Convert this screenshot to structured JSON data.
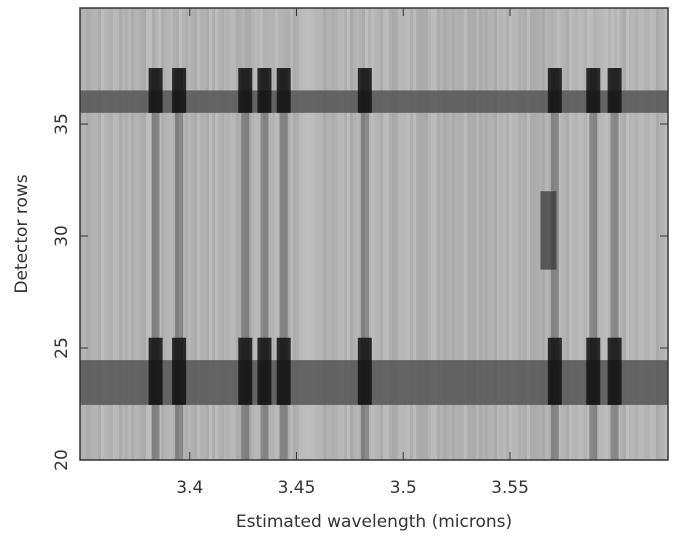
{
  "chart_data": {
    "type": "spectrum-image",
    "xlabel": "Estimated wavelength (microns)",
    "ylabel": "Detector rows",
    "xlim": [
      3.3486,
      3.624
    ],
    "ylim": [
      20,
      40.18
    ],
    "xticks": [
      3.4,
      3.45,
      3.5,
      3.55
    ],
    "yticks": [
      20,
      25,
      30,
      35
    ],
    "background": "#b4b4b4",
    "line_color": "#2a2a2a",
    "lines_x": [
      3.384,
      3.395,
      3.426,
      3.435,
      3.444,
      3.482,
      3.571,
      3.589,
      3.599
    ],
    "bands": [
      {
        "y0": 22.46,
        "y1": 24.46
      },
      {
        "y0": 35.5,
        "y1": 36.5
      }
    ],
    "spots": [
      {
        "x": 3.568,
        "y0": 28.5,
        "y1": 32
      }
    ]
  }
}
